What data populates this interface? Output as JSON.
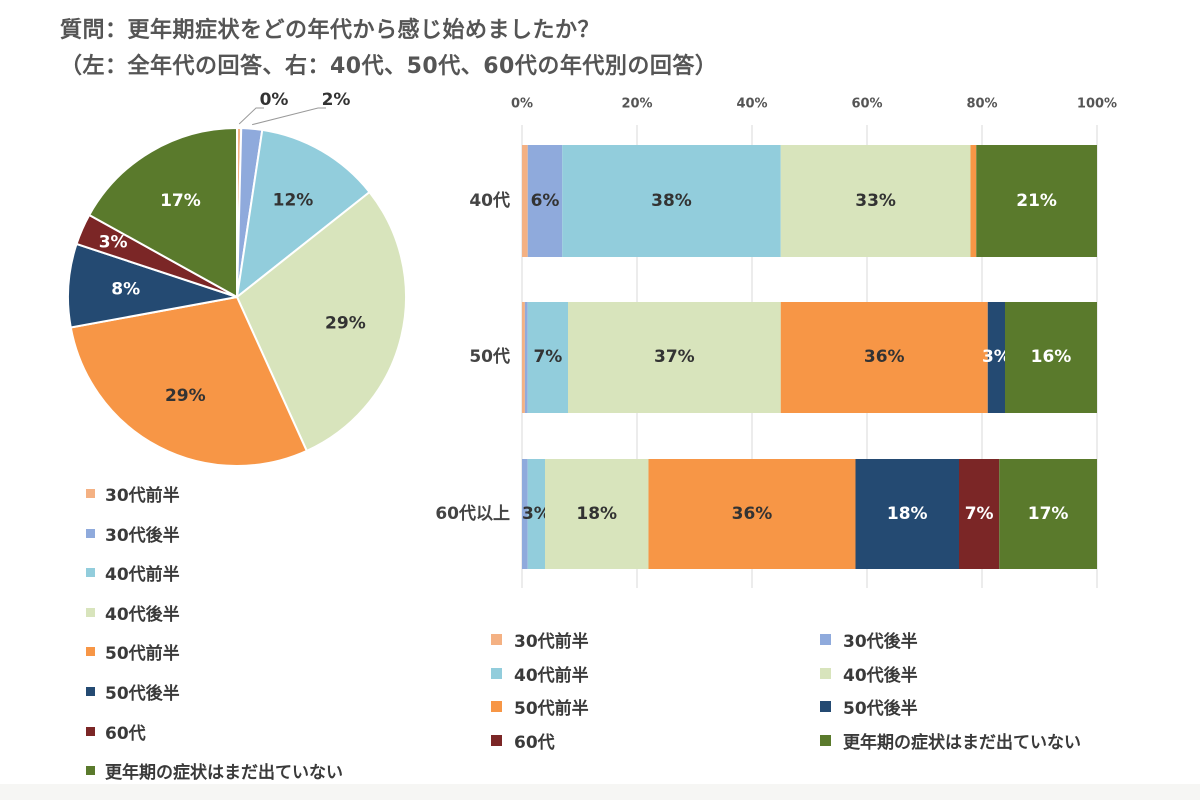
{
  "title": {
    "line1": "質問：更年期症状をどの年代から感じ始めましたか？",
    "line2": "（左：全年代の回答、右：40代、50代、60代の年代別の回答）"
  },
  "colors": {
    "30代前半": "#f4b183",
    "30代後半": "#8faadc",
    "40代前半": "#92cddc",
    "40代後半": "#d8e4bc",
    "50代前半": "#f79646",
    "50代後半": "#244a72",
    "60代": "#7b2626",
    "更年期の症状はまだ出ていない": "#5a7a2c"
  },
  "chart_data": [
    {
      "type": "pie",
      "categories": [
        "30代前半",
        "30代後半",
        "40代前半",
        "40代後半",
        "50代前半",
        "50代後半",
        "60代",
        "更年期の症状はまだ出ていない"
      ],
      "values": [
        0.4,
        2,
        12,
        29,
        29,
        8,
        3,
        17
      ],
      "labels": [
        "0%",
        "2%",
        "12%",
        "29%",
        "29%",
        "8%",
        "3%",
        "17%"
      ],
      "legend": [
        "30代前半",
        "30代後半",
        "40代前半",
        "40代後半",
        "50代前半",
        "50代後半",
        "60代",
        "更年期の症状はまだ出ていない"
      ],
      "legend_position": "bottom"
    },
    {
      "type": "bar",
      "orientation": "horizontal",
      "stacked": "percent",
      "categories": [
        "40代",
        "50代",
        "60代以上"
      ],
      "series": [
        {
          "name": "30代前半",
          "values": [
            1,
            0.5,
            0
          ],
          "labels": [
            "",
            "",
            ""
          ]
        },
        {
          "name": "30代後半",
          "values": [
            6,
            0.5,
            1
          ],
          "labels": [
            "6%",
            "",
            ""
          ]
        },
        {
          "name": "40代前半",
          "values": [
            38,
            7,
            3
          ],
          "labels": [
            "38%",
            "7%",
            "3%"
          ]
        },
        {
          "name": "40代後半",
          "values": [
            33,
            37,
            18
          ],
          "labels": [
            "33%",
            "37%",
            "18%"
          ]
        },
        {
          "name": "50代前半",
          "values": [
            1,
            36,
            36
          ],
          "labels": [
            "",
            "36%",
            "36%"
          ]
        },
        {
          "name": "50代後半",
          "values": [
            0,
            3,
            18
          ],
          "labels": [
            "",
            "3%",
            "18%"
          ]
        },
        {
          "name": "60代",
          "values": [
            0,
            0,
            7
          ],
          "labels": [
            "",
            "",
            "7%"
          ]
        },
        {
          "name": "更年期の症状はまだ出ていない",
          "values": [
            21,
            16,
            17
          ],
          "labels": [
            "21%",
            "16%",
            "17%"
          ]
        }
      ],
      "xlim": [
        0,
        100
      ],
      "xticks": [
        "0%",
        "20%",
        "40%",
        "60%",
        "80%",
        "100%"
      ],
      "grid": true,
      "legend": [
        "30代前半",
        "30代後半",
        "40代前半",
        "40代後半",
        "50代前半",
        "50代後半",
        "60代",
        "更年期の症状はまだ出ていない"
      ],
      "legend_position": "bottom"
    }
  ]
}
